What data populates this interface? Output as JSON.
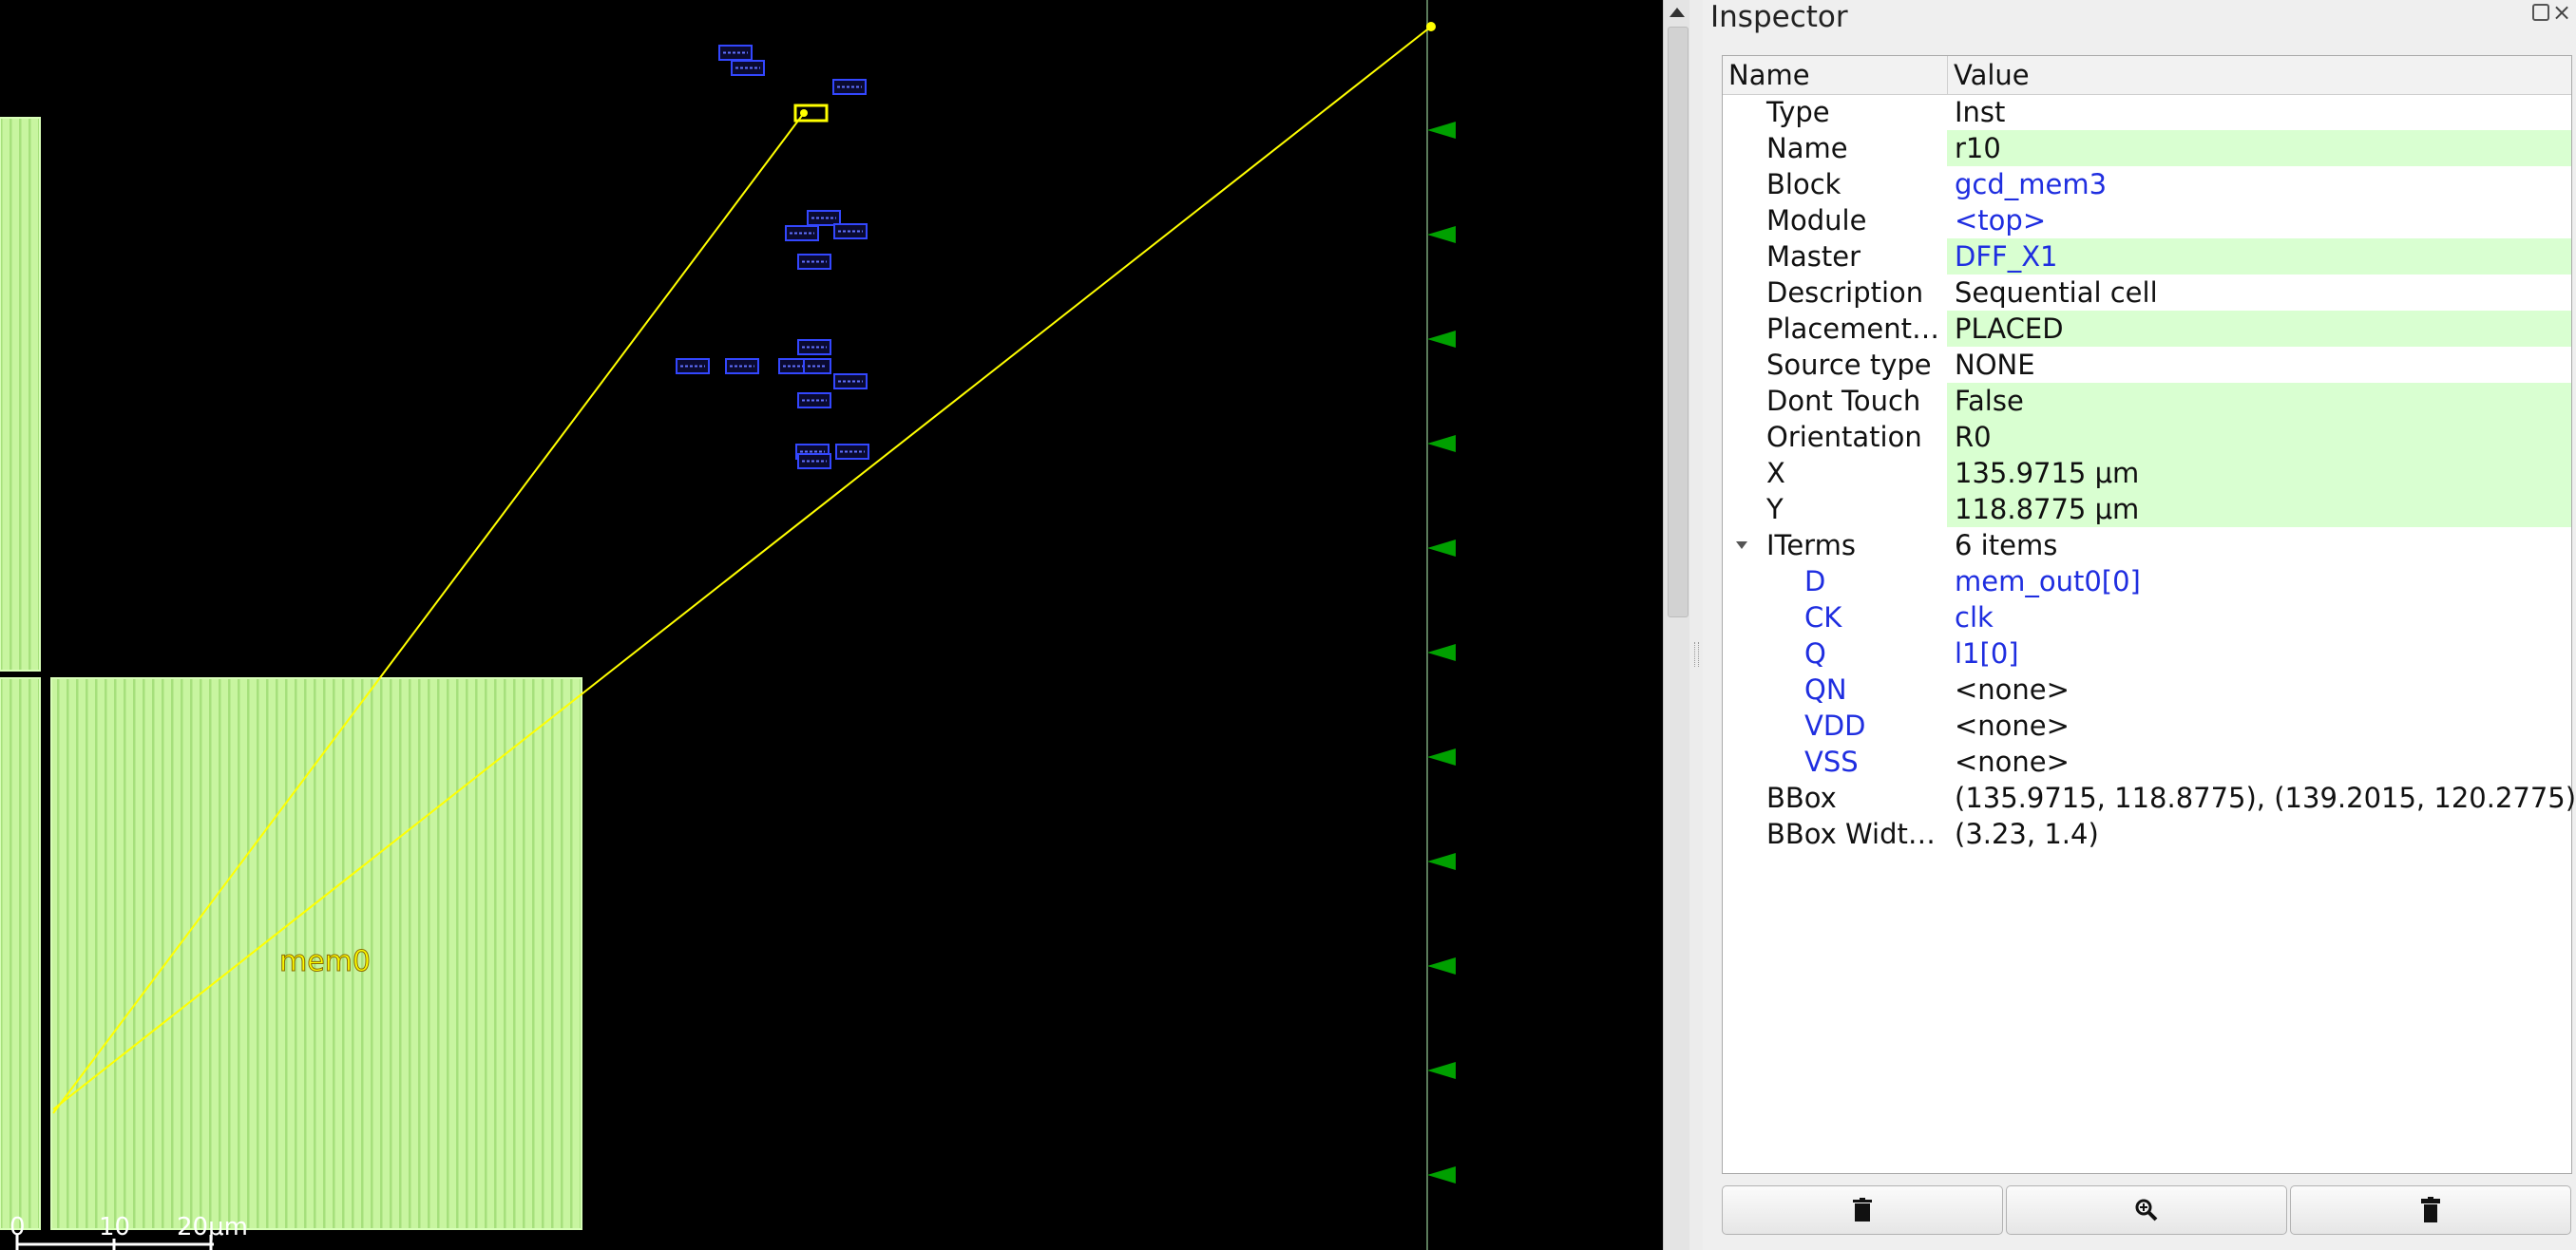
{
  "layout": {
    "instance_label": "mem0",
    "scale_labels": [
      "0",
      "10",
      "20μm"
    ]
  },
  "inspector": {
    "title": "Inspector",
    "columns": {
      "name": "Name",
      "value": "Value"
    },
    "properties": [
      {
        "name": "Type",
        "value": "Inst",
        "highlight": false,
        "link": false
      },
      {
        "name": "Name",
        "value": "r10",
        "highlight": true,
        "link": false
      },
      {
        "name": "Block",
        "value": "gcd_mem3",
        "highlight": false,
        "link": true
      },
      {
        "name": "Module",
        "value": "<top>",
        "highlight": false,
        "link": true
      },
      {
        "name": "Master",
        "value": "DFF_X1",
        "highlight": true,
        "link": true
      },
      {
        "name": "Description",
        "value": "Sequential cell",
        "highlight": false,
        "link": false
      },
      {
        "name": "Placement…",
        "value": "PLACED",
        "highlight": true,
        "link": false
      },
      {
        "name": "Source type",
        "value": "NONE",
        "highlight": false,
        "link": false
      },
      {
        "name": "Dont Touch",
        "value": "False",
        "highlight": true,
        "link": false
      },
      {
        "name": "Orientation",
        "value": "R0",
        "highlight": true,
        "link": false
      },
      {
        "name": "X",
        "value": "135.9715 μm",
        "highlight": true,
        "link": false
      },
      {
        "name": "Y",
        "value": "118.8775 μm",
        "highlight": true,
        "link": false
      },
      {
        "name": "ITerms",
        "value": "6 items",
        "highlight": false,
        "link": false,
        "expanded": true
      }
    ],
    "iterms": [
      {
        "name": "D",
        "value": "mem_out0[0]",
        "link": true
      },
      {
        "name": "CK",
        "value": "clk",
        "link": true
      },
      {
        "name": "Q",
        "value": "l1[0]",
        "link": true
      },
      {
        "name": "QN",
        "value": "<none>",
        "link": false
      },
      {
        "name": "VDD",
        "value": "<none>",
        "link": false
      },
      {
        "name": "VSS",
        "value": "<none>",
        "link": false
      }
    ],
    "trailing": [
      {
        "name": "BBox",
        "value": "(135.9715, 118.8775), (139.2015, 120.2775)"
      },
      {
        "name": "BBox Widt…",
        "value": "(3.23, 1.4)"
      }
    ],
    "buttons": [
      {
        "icon": "delete-icon"
      },
      {
        "icon": "zoom-icon"
      },
      {
        "icon": "clear-icon"
      }
    ]
  },
  "colors": {
    "macro_fill": "#c8f5a0",
    "macro_stripe": "#a6e07c",
    "flight_line": "#ffff00",
    "cell_outline": "#3347ff",
    "pin_marker": "#00a000",
    "value_highlight": "#d9ffd1",
    "link_text": "#1f2ee0"
  }
}
